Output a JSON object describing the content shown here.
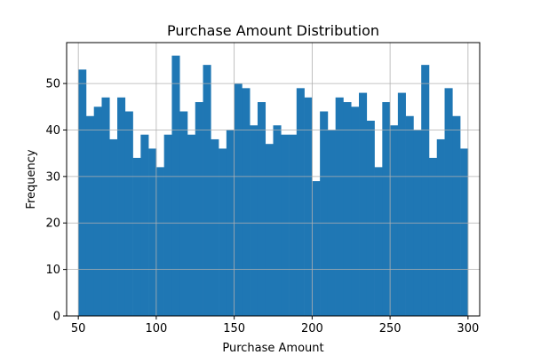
{
  "chart_data": {
    "type": "bar",
    "title": "Purchase Amount Distribution",
    "xlabel": "Purchase Amount",
    "ylabel": "Frequency",
    "bins": {
      "start": 50,
      "end": 300,
      "width": 5
    },
    "values": [
      53,
      43,
      45,
      47,
      38,
      47,
      44,
      34,
      39,
      36,
      32,
      39,
      56,
      44,
      39,
      46,
      54,
      38,
      36,
      40,
      50,
      49,
      41,
      46,
      37,
      41,
      39,
      39,
      49,
      47,
      29,
      44,
      40,
      47,
      46,
      45,
      48,
      42,
      32,
      46,
      41,
      48,
      43,
      40,
      54,
      34,
      38,
      49,
      43,
      36
    ],
    "xlim": [
      42.5,
      307.5
    ],
    "ylim": [
      0,
      58.8
    ],
    "xticks": [
      50,
      100,
      150,
      200,
      250,
      300
    ],
    "yticks": [
      0,
      10,
      20,
      30,
      40,
      50
    ],
    "grid": true,
    "bar_color": "#1f77b4"
  }
}
